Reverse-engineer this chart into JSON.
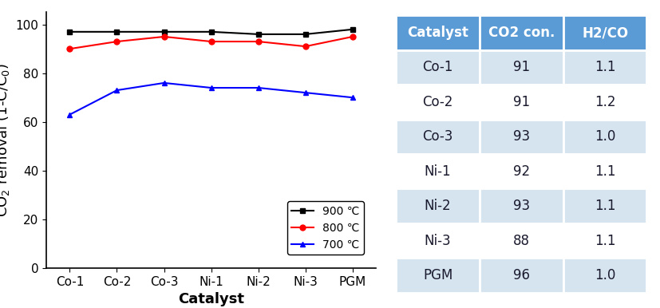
{
  "catalysts": [
    "Co-1",
    "Co-2",
    "Co-3",
    "Ni-1",
    "Ni-2",
    "Ni-3",
    "PGM"
  ],
  "series_900": [
    97,
    97,
    97,
    97,
    96,
    96,
    98
  ],
  "series_800": [
    90,
    93,
    95,
    93,
    93,
    91,
    95
  ],
  "series_700": [
    63,
    73,
    76,
    74,
    74,
    72,
    70
  ],
  "line_colors": [
    "#000000",
    "#ff0000",
    "#0000ff"
  ],
  "line_labels": [
    "900 ℃",
    "800 ℃",
    "700 ℃"
  ],
  "markers_900": "s",
  "markers_800": "o",
  "markers_700": "^",
  "ylabel": "CO$_2$ removal (1-C/C$_0$)",
  "xlabel": "Catalyst",
  "ylim": [
    0,
    105
  ],
  "yticks": [
    0,
    20,
    40,
    60,
    80,
    100
  ],
  "table_headers": [
    "Catalyst",
    "CO2 con.",
    "H2/CO"
  ],
  "table_catalysts": [
    "Co-1",
    "Co-2",
    "Co-3",
    "Ni-1",
    "Ni-2",
    "Ni-3",
    "PGM"
  ],
  "table_co2": [
    91,
    91,
    93,
    92,
    93,
    88,
    96
  ],
  "table_h2co": [
    "1.1",
    "1.2",
    "1.0",
    "1.1",
    "1.1",
    "1.1",
    "1.0"
  ],
  "header_bg": "#5b9bd5",
  "row_bg_odd": "#d6e4f0",
  "row_bg_even": "#ffffff",
  "header_text_color": "#ffffff",
  "row_text_color": "#1a1a2e",
  "legend_fontsize": 10,
  "axis_label_fontsize": 13,
  "tick_fontsize": 11,
  "table_header_fontsize": 12,
  "table_row_fontsize": 12
}
